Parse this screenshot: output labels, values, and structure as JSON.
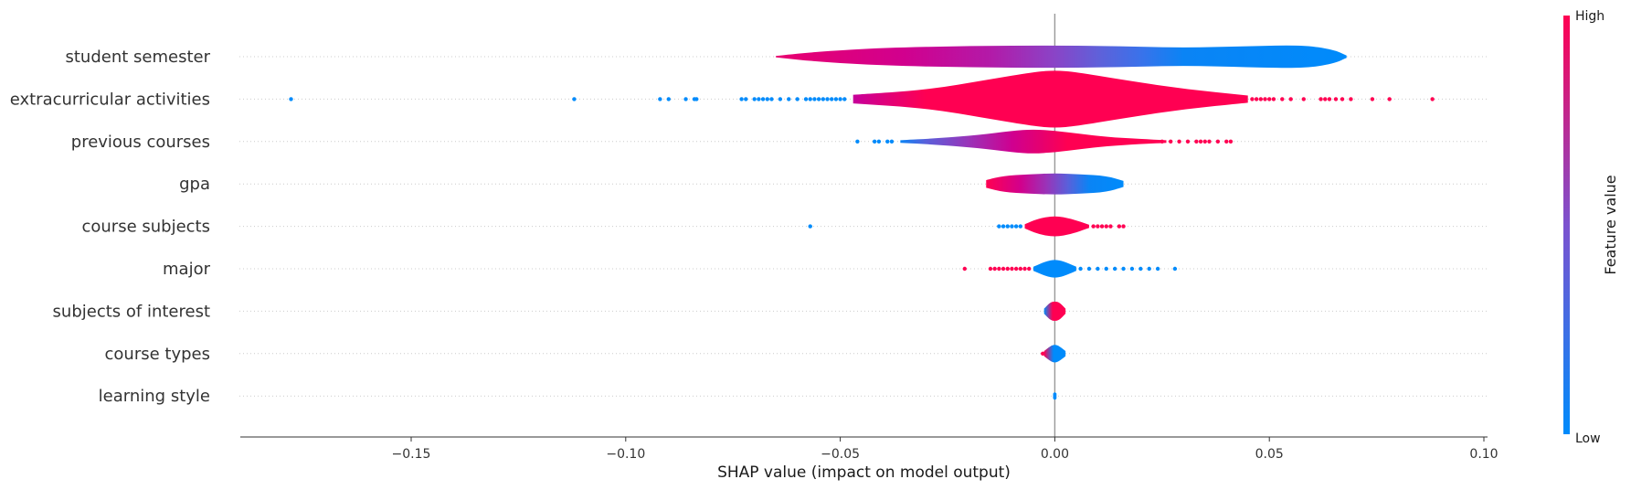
{
  "chart_data": {
    "type": "violin",
    "title": "",
    "xlabel": "SHAP value (impact on model output)",
    "xlim": [
      -0.19,
      0.1
    ],
    "xticks": [
      -0.15,
      -0.1,
      -0.05,
      0.0,
      0.05,
      0.1
    ],
    "xtick_labels": [
      "−0.15",
      "−0.10",
      "−0.05",
      "0.00",
      "0.05",
      "0.10"
    ],
    "colorbar": {
      "label": "Feature value",
      "high_label": "High",
      "low_label": "Low",
      "high_color": "#ff0052",
      "low_color": "#008bfb"
    },
    "features": [
      {
        "name": "student semester",
        "body": [
          -0.065,
          0.068
        ],
        "max_half": 0.55,
        "profile": [
          [
            -0.065,
            0.03
          ],
          [
            -0.055,
            0.22
          ],
          [
            -0.04,
            0.38
          ],
          [
            -0.02,
            0.46
          ],
          [
            0.0,
            0.48
          ],
          [
            0.015,
            0.45
          ],
          [
            0.03,
            0.38
          ],
          [
            0.045,
            0.45
          ],
          [
            0.058,
            0.5
          ],
          [
            0.065,
            0.3
          ],
          [
            0.068,
            0.05
          ]
        ],
        "gradient": [
          [
            -0.065,
            "#e8006f"
          ],
          [
            -0.035,
            "#d1008e"
          ],
          [
            -0.015,
            "#b31aa8"
          ],
          [
            0.0,
            "#8a44c7"
          ],
          [
            0.01,
            "#6060d9"
          ],
          [
            0.02,
            "#3a72ea"
          ],
          [
            0.03,
            "#0a84f5"
          ],
          [
            0.068,
            "#008bfb"
          ]
        ],
        "outliers": []
      },
      {
        "name": "extracurricular activities",
        "body": [
          -0.047,
          0.045
        ],
        "max_half": 0.85,
        "profile": [
          [
            -0.047,
            0.12
          ],
          [
            -0.03,
            0.25
          ],
          [
            -0.015,
            0.55
          ],
          [
            -0.005,
            0.75
          ],
          [
            0.0,
            0.8
          ],
          [
            0.005,
            0.75
          ],
          [
            0.015,
            0.55
          ],
          [
            0.03,
            0.28
          ],
          [
            0.045,
            0.1
          ]
        ],
        "gradient": [
          [
            -0.047,
            "#c6009a"
          ],
          [
            -0.03,
            "#ff0052"
          ],
          [
            0.045,
            "#ff0052"
          ]
        ],
        "outliers": [
          [
            -0.178,
            "#008bfb"
          ],
          [
            -0.112,
            "#008bfb"
          ],
          [
            -0.092,
            "#008bfb"
          ],
          [
            -0.09,
            "#008bfb"
          ],
          [
            -0.086,
            "#008bfb"
          ],
          [
            -0.084,
            "#008bfb"
          ],
          [
            -0.0835,
            "#008bfb"
          ],
          [
            -0.073,
            "#008bfb"
          ],
          [
            -0.072,
            "#008bfb"
          ],
          [
            -0.07,
            "#008bfb"
          ],
          [
            -0.069,
            "#008bfb"
          ],
          [
            -0.068,
            "#008bfb"
          ],
          [
            -0.067,
            "#008bfb"
          ],
          [
            -0.066,
            "#008bfb"
          ],
          [
            -0.064,
            "#008bfb"
          ],
          [
            -0.062,
            "#008bfb"
          ],
          [
            -0.06,
            "#008bfb"
          ],
          [
            -0.058,
            "#008bfb"
          ],
          [
            -0.057,
            "#008bfb"
          ],
          [
            -0.056,
            "#008bfb"
          ],
          [
            -0.055,
            "#008bfb"
          ],
          [
            -0.054,
            "#008bfb"
          ],
          [
            -0.053,
            "#008bfb"
          ],
          [
            -0.052,
            "#008bfb"
          ],
          [
            -0.051,
            "#008bfb"
          ],
          [
            -0.05,
            "#008bfb"
          ],
          [
            -0.049,
            "#008bfb"
          ],
          [
            0.046,
            "#ff0052"
          ],
          [
            0.047,
            "#ff0052"
          ],
          [
            0.048,
            "#ff0052"
          ],
          [
            0.049,
            "#ff0052"
          ],
          [
            0.05,
            "#ff0052"
          ],
          [
            0.051,
            "#ff0052"
          ],
          [
            0.053,
            "#ff0052"
          ],
          [
            0.055,
            "#ff0052"
          ],
          [
            0.058,
            "#ff0052"
          ],
          [
            0.062,
            "#ff0052"
          ],
          [
            0.063,
            "#ff0052"
          ],
          [
            0.064,
            "#ff0052"
          ],
          [
            0.0655,
            "#ff0052"
          ],
          [
            0.067,
            "#ff0052"
          ],
          [
            0.069,
            "#ff0052"
          ],
          [
            0.074,
            "#ff0052"
          ],
          [
            0.078,
            "#ff0052"
          ],
          [
            0.088,
            "#ff0052"
          ]
        ]
      },
      {
        "name": "previous courses",
        "body": [
          -0.036,
          0.026
        ],
        "max_half": 0.6,
        "profile": [
          [
            -0.036,
            0.05
          ],
          [
            -0.028,
            0.12
          ],
          [
            -0.018,
            0.25
          ],
          [
            -0.01,
            0.42
          ],
          [
            -0.005,
            0.48
          ],
          [
            0.0,
            0.42
          ],
          [
            0.006,
            0.3
          ],
          [
            0.012,
            0.18
          ],
          [
            0.02,
            0.1
          ],
          [
            0.026,
            0.05
          ]
        ],
        "gradient": [
          [
            -0.036,
            "#0a84f5"
          ],
          [
            -0.03,
            "#5a60da"
          ],
          [
            -0.02,
            "#9a33b8"
          ],
          [
            -0.01,
            "#cf0090"
          ],
          [
            -0.003,
            "#e6006e"
          ],
          [
            0.003,
            "#ff0052"
          ],
          [
            0.026,
            "#ff0052"
          ]
        ],
        "outliers": [
          [
            -0.046,
            "#008bfb"
          ],
          [
            -0.042,
            "#008bfb"
          ],
          [
            -0.041,
            "#008bfb"
          ],
          [
            -0.039,
            "#008bfb"
          ],
          [
            -0.038,
            "#008bfb"
          ],
          [
            0.025,
            "#ff0052"
          ],
          [
            0.027,
            "#ff0052"
          ],
          [
            0.029,
            "#ff0052"
          ],
          [
            0.031,
            "#ff0052"
          ],
          [
            0.033,
            "#ff0052"
          ],
          [
            0.034,
            "#ff0052"
          ],
          [
            0.035,
            "#ff0052"
          ],
          [
            0.036,
            "#ff0052"
          ],
          [
            0.038,
            "#ff0052"
          ],
          [
            0.04,
            "#ff0052"
          ],
          [
            0.041,
            "#ff0052"
          ]
        ]
      },
      {
        "name": "gpa",
        "body": [
          -0.016,
          0.016
        ],
        "max_half": 0.6,
        "profile": [
          [
            -0.016,
            0.15
          ],
          [
            -0.012,
            0.32
          ],
          [
            -0.006,
            0.38
          ],
          [
            0.0,
            0.42
          ],
          [
            0.006,
            0.38
          ],
          [
            0.012,
            0.32
          ],
          [
            0.016,
            0.12
          ]
        ],
        "gradient": [
          [
            -0.016,
            "#ff0052"
          ],
          [
            -0.008,
            "#d2008c"
          ],
          [
            -0.002,
            "#9a33b8"
          ],
          [
            0.003,
            "#5a60da"
          ],
          [
            0.008,
            "#0a84f5"
          ],
          [
            0.016,
            "#008bfb"
          ]
        ],
        "outliers": []
      },
      {
        "name": "course subjects",
        "body": [
          -0.007,
          0.008
        ],
        "max_half": 0.6,
        "profile": [
          [
            -0.007,
            0.08
          ],
          [
            -0.004,
            0.3
          ],
          [
            0.0,
            0.42
          ],
          [
            0.004,
            0.3
          ],
          [
            0.008,
            0.06
          ]
        ],
        "gradient": [
          [
            -0.007,
            "#ff0052"
          ],
          [
            0.008,
            "#ff0052"
          ]
        ],
        "outliers": [
          [
            -0.057,
            "#008bfb"
          ],
          [
            -0.013,
            "#008bfb"
          ],
          [
            -0.012,
            "#008bfb"
          ],
          [
            -0.011,
            "#008bfb"
          ],
          [
            -0.01,
            "#008bfb"
          ],
          [
            -0.009,
            "#008bfb"
          ],
          [
            -0.008,
            "#008bfb"
          ],
          [
            0.009,
            "#ff0052"
          ],
          [
            0.01,
            "#ff0052"
          ],
          [
            0.011,
            "#ff0052"
          ],
          [
            0.012,
            "#ff0052"
          ],
          [
            0.013,
            "#ff0052"
          ],
          [
            0.015,
            "#ff0052"
          ],
          [
            0.016,
            "#ff0052"
          ]
        ]
      },
      {
        "name": "major",
        "body": [
          -0.005,
          0.005
        ],
        "max_half": 0.6,
        "profile": [
          [
            -0.005,
            0.08
          ],
          [
            -0.002,
            0.3
          ],
          [
            0.0,
            0.36
          ],
          [
            0.002,
            0.3
          ],
          [
            0.005,
            0.08
          ]
        ],
        "gradient": [
          [
            -0.005,
            "#008bfb"
          ],
          [
            0.005,
            "#008bfb"
          ]
        ],
        "outliers": [
          [
            -0.021,
            "#ff0052"
          ],
          [
            -0.015,
            "#ff0052"
          ],
          [
            -0.014,
            "#ff0052"
          ],
          [
            -0.013,
            "#ff0052"
          ],
          [
            -0.012,
            "#ff0052"
          ],
          [
            -0.011,
            "#ff0052"
          ],
          [
            -0.01,
            "#ff0052"
          ],
          [
            -0.009,
            "#ff0052"
          ],
          [
            -0.008,
            "#ff0052"
          ],
          [
            -0.007,
            "#ff0052"
          ],
          [
            -0.006,
            "#ff0052"
          ],
          [
            0.006,
            "#008bfb"
          ],
          [
            0.008,
            "#008bfb"
          ],
          [
            0.01,
            "#008bfb"
          ],
          [
            0.012,
            "#008bfb"
          ],
          [
            0.014,
            "#008bfb"
          ],
          [
            0.016,
            "#008bfb"
          ],
          [
            0.018,
            "#008bfb"
          ],
          [
            0.02,
            "#008bfb"
          ],
          [
            0.022,
            "#008bfb"
          ],
          [
            0.024,
            "#008bfb"
          ],
          [
            0.028,
            "#008bfb"
          ]
        ]
      },
      {
        "name": "subjects of interest",
        "body": [
          -0.0025,
          0.0025
        ],
        "max_half": 0.6,
        "profile": [
          [
            -0.0025,
            0.1
          ],
          [
            -0.001,
            0.36
          ],
          [
            0.0,
            0.38
          ],
          [
            0.001,
            0.36
          ],
          [
            0.0025,
            0.1
          ]
        ],
        "gradient": [
          [
            -0.0025,
            "#008bfb"
          ],
          [
            -0.0005,
            "#ff0052"
          ],
          [
            0.0025,
            "#ff0052"
          ]
        ],
        "outliers": []
      },
      {
        "name": "course types",
        "body": [
          -0.0025,
          0.0025
        ],
        "max_half": 0.6,
        "profile": [
          [
            -0.0025,
            0.1
          ],
          [
            -0.001,
            0.3
          ],
          [
            0.0,
            0.36
          ],
          [
            0.001,
            0.3
          ],
          [
            0.0025,
            0.1
          ]
        ],
        "gradient": [
          [
            -0.0025,
            "#ff0052"
          ],
          [
            -0.0003,
            "#008bfb"
          ],
          [
            0.0025,
            "#008bfb"
          ]
        ],
        "outliers": [
          [
            -0.0028,
            "#ff0052"
          ]
        ]
      },
      {
        "name": "learning style",
        "body": [
          -0.0004,
          0.0004
        ],
        "max_half": 0.6,
        "profile": [
          [
            -0.0004,
            0.1
          ],
          [
            0.0,
            0.16
          ],
          [
            0.0004,
            0.1
          ]
        ],
        "gradient": [
          [
            -0.0004,
            "#008bfb"
          ],
          [
            0.0004,
            "#008bfb"
          ]
        ],
        "outliers": []
      }
    ]
  }
}
